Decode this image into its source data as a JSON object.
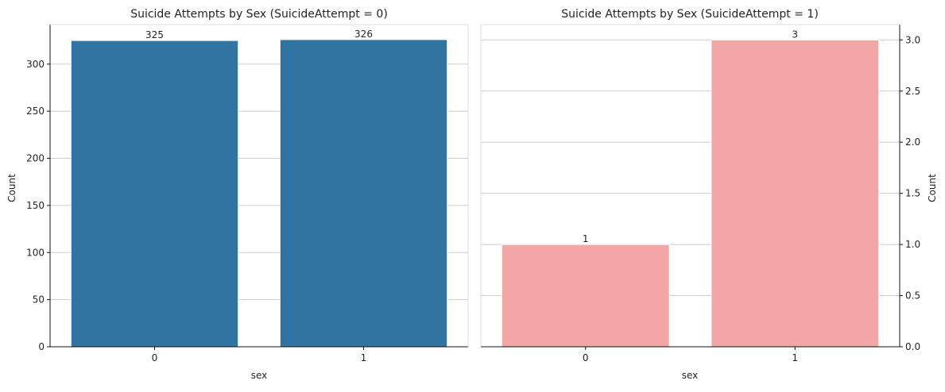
{
  "chart_data": [
    {
      "type": "bar",
      "title": "Suicide Attempts by Sex (SuicideAttempt = 0)",
      "xlabel": "sex",
      "ylabel": "Count",
      "categories": [
        "0",
        "1"
      ],
      "values": [
        325,
        326
      ],
      "data_labels": [
        "325",
        "326"
      ],
      "ylim": [
        0,
        341.9
      ],
      "yticks": [
        0,
        50,
        100,
        150,
        200,
        250,
        300
      ],
      "ytick_labels": [
        "0",
        "50",
        "100",
        "150",
        "200",
        "250",
        "300"
      ],
      "y_axis_side": "left",
      "grid": "y",
      "bar_color": "#3274a1"
    },
    {
      "type": "bar",
      "title": "Suicide Attempts by Sex (SuicideAttempt = 1)",
      "xlabel": "sex",
      "ylabel": "Count",
      "categories": [
        "0",
        "1"
      ],
      "values": [
        1,
        3
      ],
      "data_labels": [
        "1",
        "3"
      ],
      "ylim": [
        0,
        3.15
      ],
      "yticks": [
        0,
        0.5,
        1,
        1.5,
        2,
        2.5,
        3
      ],
      "ytick_labels": [
        "0.0",
        "0.5",
        "1.0",
        "1.5",
        "2.0",
        "2.5",
        "3.0"
      ],
      "y_axis_side": "right",
      "grid": "y",
      "bar_color": "#f2a6a6"
    }
  ]
}
